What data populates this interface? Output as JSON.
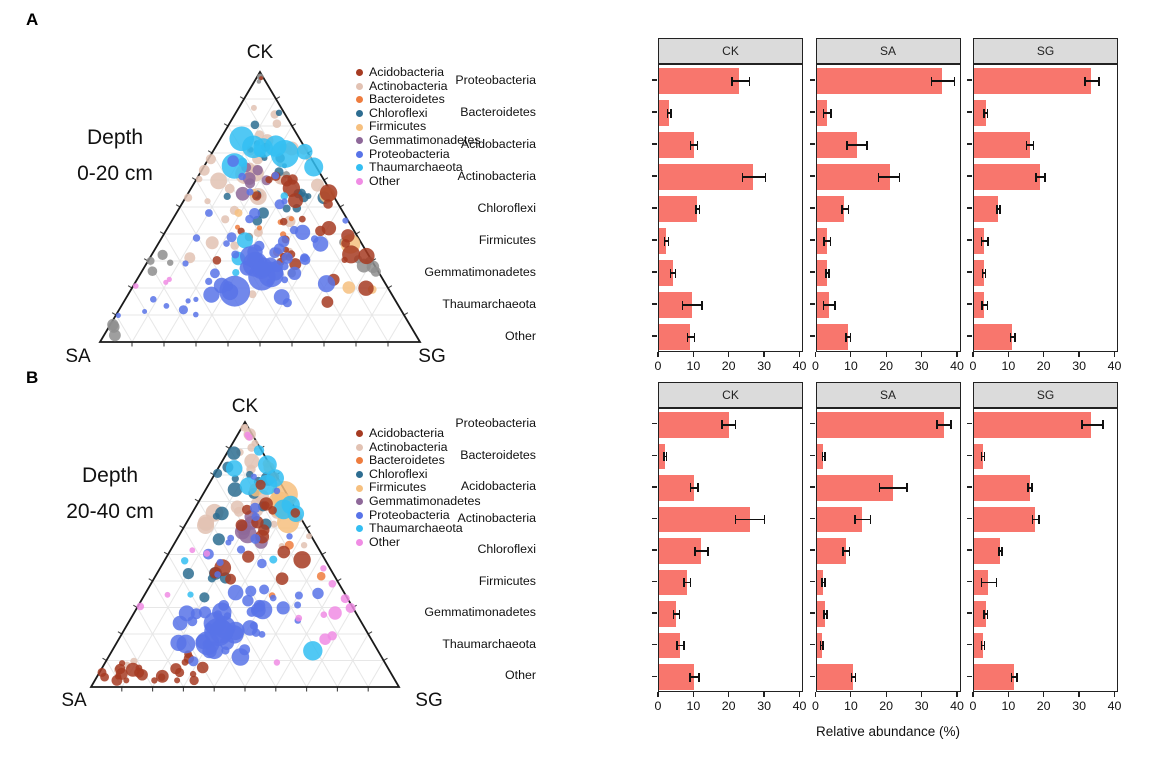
{
  "figure": {
    "panel_a_label": "A",
    "panel_b_label": "B",
    "xaxis_title": "Relative abundance (%)"
  },
  "colors": {
    "Acidobacteria": "#A63B22",
    "Actinobacteria": "#E2C2B3",
    "Bacteroidetes": "#EE7C3E",
    "Chloroflexi": "#2D6D91",
    "Firmicutes": "#F6C07F",
    "Gemmatimonadetes": "#8E6899",
    "Proteobacteria": "#5873E8",
    "Thaumarchaeota": "#33BEF2",
    "Other": "#F08CE4",
    "Gray": "#8E8E8E",
    "bar": "#F8766D",
    "strip_bg": "#DBDBDB",
    "panel_border": "#222222",
    "ternary_grid": "#E7E7E7",
    "ternary_border": "#1A1A1A"
  },
  "chart_data": [
    {
      "type": "scatter",
      "subtype": "ternary",
      "panel": "A",
      "depth": [
        "Depth",
        "0-20 cm"
      ],
      "axes": {
        "top": "CK",
        "left": "SA",
        "right": "SG"
      },
      "legend": [
        "Acidobacteria",
        "Actinobacteria",
        "Bacteroidetes",
        "Chloroflexi",
        "Firmicutes",
        "Gemmatimonadetes",
        "Proteobacteria",
        "Thaumarchaeota",
        "Other"
      ],
      "seed": 20240,
      "point_opacity": 0.85,
      "clusters": [
        {
          "t": "Actinobacteria",
          "n": 26,
          "x": 0.47,
          "y": 0.47,
          "sx": 0.17,
          "sy": 0.15,
          "r": [
            3,
            7
          ]
        },
        {
          "t": "Actinobacteria",
          "n": 10,
          "x": 0.5,
          "y": 0.3,
          "sx": 0.06,
          "sy": 0.08,
          "r": [
            3,
            8
          ]
        },
        {
          "t": "Actinobacteria",
          "n": 4,
          "x": 0.44,
          "y": 0.38,
          "sx": 0.05,
          "sy": 0.05,
          "r": [
            8,
            11
          ]
        },
        {
          "t": "Gray",
          "n": 6,
          "x": 0.83,
          "y": 0.68,
          "sx": 0.06,
          "sy": 0.07,
          "r": [
            4,
            8
          ]
        },
        {
          "t": "Gray",
          "n": 4,
          "x": 0.15,
          "y": 0.7,
          "sx": 0.03,
          "sy": 0.05,
          "r": [
            3,
            6
          ]
        },
        {
          "t": "Gray",
          "n": 3,
          "x": 0.05,
          "y": 0.94,
          "sx": 0.02,
          "sy": 0.02,
          "r": [
            4,
            6
          ]
        },
        {
          "t": "Gray",
          "n": 4,
          "x": 0.55,
          "y": 0.52,
          "sx": 0.12,
          "sy": 0.1,
          "r": [
            3,
            6
          ]
        },
        {
          "t": "Gray",
          "n": 3,
          "x": 0.5,
          "y": 0.02,
          "sx": 0.012,
          "sy": 0.012,
          "r": [
            2,
            3.5
          ]
        },
        {
          "t": "Chloroflexi",
          "n": 16,
          "x": 0.49,
          "y": 0.4,
          "sx": 0.09,
          "sy": 0.1,
          "r": [
            2.5,
            7
          ]
        },
        {
          "t": "Chloroflexi",
          "n": 5,
          "x": 0.52,
          "y": 0.25,
          "sx": 0.05,
          "sy": 0.06,
          "r": [
            2.5,
            5
          ]
        },
        {
          "t": "Gemmatimonadetes",
          "n": 6,
          "x": 0.475,
          "y": 0.4,
          "sx": 0.035,
          "sy": 0.04,
          "r": [
            5,
            10
          ]
        },
        {
          "t": "Bacteroidetes",
          "n": 7,
          "x": 0.55,
          "y": 0.58,
          "sx": 0.15,
          "sy": 0.1,
          "r": [
            2.5,
            5
          ]
        },
        {
          "t": "Firmicutes",
          "n": 5,
          "x": 0.6,
          "y": 0.62,
          "sx": 0.15,
          "sy": 0.1,
          "r": [
            4,
            8
          ]
        },
        {
          "t": "Firmicutes",
          "n": 1,
          "x": 0.79,
          "y": 0.65,
          "sx": 0.01,
          "sy": 0.01,
          "r": [
            9,
            10
          ]
        },
        {
          "t": "Acidobacteria",
          "n": 24,
          "x": 0.63,
          "y": 0.62,
          "sx": 0.11,
          "sy": 0.09,
          "r": [
            3,
            9
          ]
        },
        {
          "t": "Acidobacteria",
          "n": 6,
          "x": 0.55,
          "y": 0.45,
          "sx": 0.06,
          "sy": 0.08,
          "r": [
            3,
            6
          ]
        },
        {
          "t": "Acidobacteria",
          "n": 1,
          "x": 0.505,
          "y": 0.03,
          "sx": 0.01,
          "sy": 0.01,
          "r": [
            2,
            3
          ]
        },
        {
          "t": "Thaumarchaeota",
          "n": 7,
          "x": 0.5,
          "y": 0.32,
          "sx": 0.05,
          "sy": 0.05,
          "r": [
            6,
            14
          ]
        },
        {
          "t": "Thaumarchaeota",
          "n": 5,
          "x": 0.45,
          "y": 0.55,
          "sx": 0.12,
          "sy": 0.12,
          "r": [
            3,
            8
          ]
        },
        {
          "t": "Thaumarchaeota",
          "n": 2,
          "x": 0.73,
          "y": 0.35,
          "sx": 0.03,
          "sy": 0.03,
          "r": [
            7,
            11
          ]
        },
        {
          "t": "Proteobacteria",
          "n": 38,
          "x": 0.52,
          "y": 0.7,
          "sx": 0.12,
          "sy": 0.08,
          "r": [
            3,
            9
          ]
        },
        {
          "t": "Proteobacteria",
          "n": 6,
          "x": 0.5,
          "y": 0.74,
          "sx": 0.06,
          "sy": 0.04,
          "r": [
            9,
            14
          ]
        },
        {
          "t": "Proteobacteria",
          "n": 1,
          "x": 0.43,
          "y": 0.8,
          "sx": 0.01,
          "sy": 0.01,
          "r": [
            15,
            16
          ]
        },
        {
          "t": "Proteobacteria",
          "n": 8,
          "x": 0.52,
          "y": 0.5,
          "sx": 0.1,
          "sy": 0.1,
          "r": [
            3,
            6
          ]
        },
        {
          "t": "Proteobacteria",
          "n": 8,
          "x": 0.25,
          "y": 0.85,
          "sx": 0.08,
          "sy": 0.06,
          "r": [
            2.5,
            5
          ]
        },
        {
          "t": "Other",
          "n": 3,
          "x": 0.22,
          "y": 0.83,
          "sx": 0.05,
          "sy": 0.04,
          "r": [
            2.5,
            4.5
          ]
        }
      ]
    },
    {
      "type": "bar",
      "panel": "A",
      "orientation": "horizontal",
      "facets": [
        "CK",
        "SA",
        "SG"
      ],
      "categories": [
        "Proteobacteria",
        "Bacteroidetes",
        "Acidobacteria",
        "Actinobacteria",
        "Chloroflexi",
        "Firmicutes",
        "Gemmatimonadetes",
        "Thaumarchaeota",
        "Other"
      ],
      "xlim": [
        0,
        40
      ],
      "xticks": [
        0,
        10,
        20,
        30,
        40
      ],
      "xlabel": "",
      "series": [
        {
          "name": "CK",
          "values": [
            23,
            3,
            10,
            27,
            11,
            2,
            4,
            9.5,
            9
          ],
          "err_lo": [
            21,
            2.5,
            9,
            24,
            10.6,
            1.6,
            3.3,
            6.8,
            8.2
          ],
          "err_hi": [
            26,
            3.5,
            11,
            30.5,
            11.6,
            2.7,
            4.8,
            12.3,
            10.2
          ]
        },
        {
          "name": "SA",
          "values": [
            36,
            3,
            11.5,
            21,
            8,
            3,
            3,
            3.5,
            9
          ],
          "err_lo": [
            33,
            2,
            8.8,
            17.8,
            7.3,
            2.1,
            2.7,
            2,
            8.5
          ],
          "err_hi": [
            39.5,
            4.2,
            14.5,
            23.8,
            9.2,
            4,
            3.6,
            5.3,
            9.7
          ]
        },
        {
          "name": "SG",
          "values": [
            33.5,
            3.3,
            16,
            19,
            7,
            3,
            2.8,
            3,
            11
          ],
          "err_lo": [
            31.8,
            2.8,
            15,
            17.8,
            6.6,
            2.2,
            2.4,
            2.3,
            10.4
          ],
          "err_hi": [
            35.8,
            3.9,
            17,
            20.3,
            7.5,
            4,
            3.3,
            3.8,
            11.7
          ]
        }
      ]
    },
    {
      "type": "scatter",
      "subtype": "ternary",
      "panel": "B",
      "depth": [
        "Depth",
        "20-40 cm"
      ],
      "axes": {
        "top": "CK",
        "left": "SA",
        "right": "SG"
      },
      "legend": [
        "Acidobacteria",
        "Actinobacteria",
        "Bacteroidetes",
        "Chloroflexi",
        "Firmicutes",
        "Gemmatimonadetes",
        "Proteobacteria",
        "Thaumarchaeota",
        "Other"
      ],
      "seed": 777,
      "point_opacity": 0.85,
      "clusters": [
        {
          "t": "Actinobacteria",
          "n": 14,
          "x": 0.52,
          "y": 0.22,
          "sx": 0.05,
          "sy": 0.09,
          "r": [
            3,
            8
          ]
        },
        {
          "t": "Actinobacteria",
          "n": 3,
          "x": 0.37,
          "y": 0.37,
          "sx": 0.03,
          "sy": 0.03,
          "r": [
            8,
            11
          ]
        },
        {
          "t": "Actinobacteria",
          "n": 6,
          "x": 0.7,
          "y": 0.5,
          "sx": 0.08,
          "sy": 0.08,
          "r": [
            3,
            7
          ]
        },
        {
          "t": "Actinobacteria",
          "n": 3,
          "x": 0.5,
          "y": 0.03,
          "sx": 0.015,
          "sy": 0.015,
          "r": [
            2,
            4
          ]
        },
        {
          "t": "Actinobacteria",
          "n": 3,
          "x": 0.12,
          "y": 0.9,
          "sx": 0.03,
          "sy": 0.02,
          "r": [
            3,
            5
          ]
        },
        {
          "t": "Chloroflexi",
          "n": 14,
          "x": 0.5,
          "y": 0.28,
          "sx": 0.07,
          "sy": 0.09,
          "r": [
            3,
            8
          ]
        },
        {
          "t": "Chloroflexi",
          "n": 5,
          "x": 0.44,
          "y": 0.55,
          "sx": 0.06,
          "sy": 0.08,
          "r": [
            4,
            7
          ]
        },
        {
          "t": "Gemmatimonadetes",
          "n": 6,
          "x": 0.53,
          "y": 0.4,
          "sx": 0.04,
          "sy": 0.035,
          "r": [
            6,
            10
          ]
        },
        {
          "t": "Bacteroidetes",
          "n": 4,
          "x": 0.62,
          "y": 0.42,
          "sx": 0.1,
          "sy": 0.12,
          "r": [
            2.5,
            5
          ]
        },
        {
          "t": "Firmicutes",
          "n": 4,
          "x": 0.615,
          "y": 0.26,
          "sx": 0.035,
          "sy": 0.05,
          "r": [
            10,
            14
          ]
        },
        {
          "t": "Firmicutes",
          "n": 3,
          "x": 0.58,
          "y": 0.18,
          "sx": 0.05,
          "sy": 0.04,
          "r": [
            4,
            7
          ]
        },
        {
          "t": "Thaumarchaeota",
          "n": 6,
          "x": 0.545,
          "y": 0.15,
          "sx": 0.045,
          "sy": 0.05,
          "r": [
            5,
            11
          ]
        },
        {
          "t": "Thaumarchaeota",
          "n": 3,
          "x": 0.6,
          "y": 0.3,
          "sx": 0.05,
          "sy": 0.04,
          "r": [
            7,
            10
          ]
        },
        {
          "t": "Thaumarchaeota",
          "n": 1,
          "x": 0.72,
          "y": 0.88,
          "sx": 0.01,
          "sy": 0.01,
          "r": [
            9,
            11
          ]
        },
        {
          "t": "Thaumarchaeota",
          "n": 3,
          "x": 0.48,
          "y": 0.55,
          "sx": 0.1,
          "sy": 0.1,
          "r": [
            3,
            5
          ]
        },
        {
          "t": "Acidobacteria",
          "n": 18,
          "x": 0.17,
          "y": 0.95,
          "sx": 0.09,
          "sy": 0.025,
          "r": [
            3,
            7
          ]
        },
        {
          "t": "Acidobacteria",
          "n": 6,
          "x": 0.33,
          "y": 0.93,
          "sx": 0.05,
          "sy": 0.03,
          "r": [
            3,
            6
          ]
        },
        {
          "t": "Acidobacteria",
          "n": 12,
          "x": 0.57,
          "y": 0.47,
          "sx": 0.09,
          "sy": 0.1,
          "r": [
            4,
            9
          ]
        },
        {
          "t": "Acidobacteria",
          "n": 5,
          "x": 0.56,
          "y": 0.32,
          "sx": 0.05,
          "sy": 0.06,
          "r": [
            4,
            7
          ]
        },
        {
          "t": "Proteobacteria",
          "n": 30,
          "x": 0.43,
          "y": 0.8,
          "sx": 0.09,
          "sy": 0.06,
          "r": [
            4,
            10
          ]
        },
        {
          "t": "Proteobacteria",
          "n": 5,
          "x": 0.4,
          "y": 0.8,
          "sx": 0.05,
          "sy": 0.03,
          "r": [
            11,
            15
          ]
        },
        {
          "t": "Proteobacteria",
          "n": 16,
          "x": 0.55,
          "y": 0.6,
          "sx": 0.09,
          "sy": 0.09,
          "r": [
            3,
            8
          ]
        },
        {
          "t": "Proteobacteria",
          "n": 6,
          "x": 0.68,
          "y": 0.72,
          "sx": 0.07,
          "sy": 0.06,
          "r": [
            3,
            6
          ]
        },
        {
          "t": "Proteobacteria",
          "n": 5,
          "x": 0.52,
          "y": 0.35,
          "sx": 0.07,
          "sy": 0.08,
          "r": [
            3,
            6
          ]
        },
        {
          "t": "Other",
          "n": 8,
          "x": 0.8,
          "y": 0.72,
          "sx": 0.06,
          "sy": 0.06,
          "r": [
            3,
            7
          ]
        },
        {
          "t": "Other",
          "n": 6,
          "x": 0.35,
          "y": 0.62,
          "sx": 0.18,
          "sy": 0.12,
          "r": [
            2.5,
            5
          ]
        },
        {
          "t": "Other",
          "n": 2,
          "x": 0.51,
          "y": 0.06,
          "sx": 0.02,
          "sy": 0.02,
          "r": [
            2.5,
            4
          ]
        }
      ]
    },
    {
      "type": "bar",
      "panel": "B",
      "orientation": "horizontal",
      "facets": [
        "CK",
        "SA",
        "SG"
      ],
      "categories": [
        "Proteobacteria",
        "Bacteroidetes",
        "Acidobacteria",
        "Actinobacteria",
        "Chloroflexi",
        "Firmicutes",
        "Gemmatimonadetes",
        "Thaumarchaeota",
        "Other"
      ],
      "xlim": [
        0,
        40
      ],
      "xticks": [
        0,
        10,
        20,
        30,
        40
      ],
      "xlabel": "Relative abundance (%)",
      "series": [
        {
          "name": "CK",
          "values": [
            20,
            1.7,
            10,
            26,
            12,
            8,
            5,
            6,
            10
          ],
          "err_lo": [
            18,
            1.4,
            9,
            22,
            10.3,
            7.2,
            4.2,
            5.2,
            8.9
          ],
          "err_hi": [
            22,
            2.1,
            11.2,
            30.3,
            14,
            9,
            5.9,
            7.1,
            11.5
          ]
        },
        {
          "name": "SA",
          "values": [
            36.5,
            2,
            22,
            13,
            8.5,
            2,
            2.5,
            1.5,
            10.5
          ],
          "err_lo": [
            34.5,
            1.7,
            18,
            11,
            7.6,
            1.6,
            2.1,
            1.2,
            10
          ],
          "err_hi": [
            38.5,
            2.4,
            26,
            15.5,
            9.5,
            2.5,
            3,
            1.9,
            11.2
          ]
        },
        {
          "name": "SG",
          "values": [
            33.5,
            2.5,
            16,
            17.5,
            7.5,
            4,
            3.3,
            2.5,
            11.5
          ],
          "err_lo": [
            31,
            2.1,
            15.5,
            16.8,
            7.1,
            2.2,
            2.9,
            2.1,
            10.7
          ],
          "err_hi": [
            37,
            3,
            16.6,
            18.6,
            8,
            6.5,
            3.8,
            3,
            12.4
          ]
        }
      ]
    }
  ]
}
